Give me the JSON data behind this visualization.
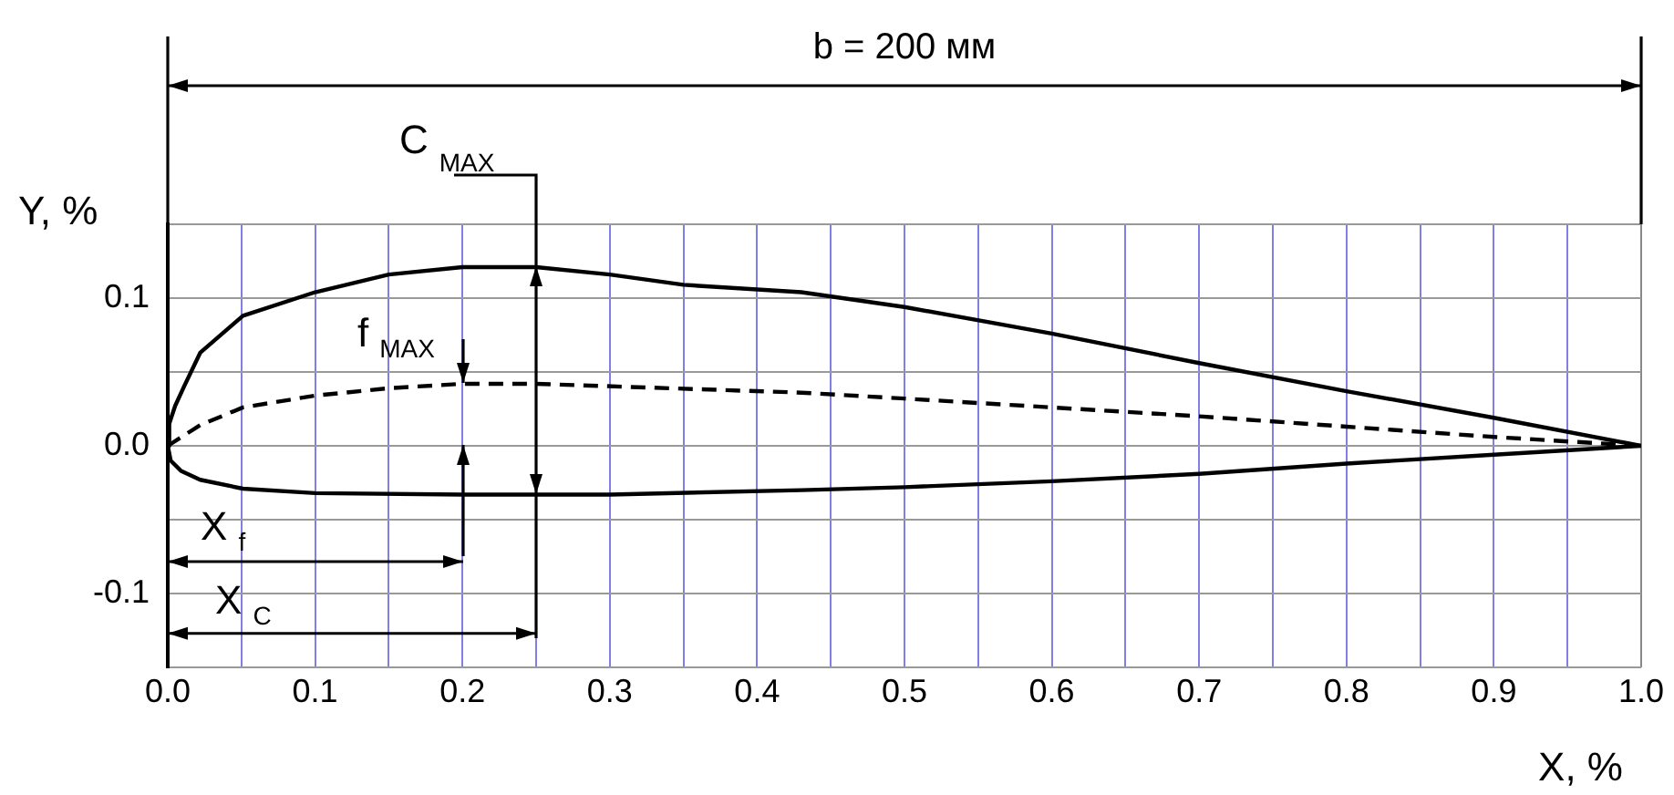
{
  "chart_data": {
    "type": "line",
    "xlabel": "X, %",
    "ylabel": "Y, %",
    "xlim": [
      0,
      1
    ],
    "ylim": [
      -0.15,
      0.15
    ],
    "xticks": [
      {
        "value": 0,
        "label": "0.0"
      },
      {
        "value": 0.05,
        "label": null
      },
      0.1,
      {
        "value": 0.15,
        "label": null
      },
      0.2,
      {
        "value": 0.25,
        "label": null
      },
      0.3,
      {
        "value": 0.35,
        "label": null
      },
      0.4,
      {
        "value": 0.45,
        "label": null
      },
      0.5,
      {
        "value": 0.55,
        "label": null
      },
      0.6,
      {
        "value": 0.65,
        "label": null
      },
      0.7,
      {
        "value": 0.75,
        "label": null
      },
      0.8,
      {
        "value": 0.85,
        "label": null
      },
      0.9,
      {
        "value": 0.95,
        "label": null
      },
      {
        "value": 1,
        "label": "1.0"
      }
    ],
    "yticks": [
      {
        "value": -0.15,
        "label": null
      },
      -0.1,
      {
        "value": -0.05,
        "label": null
      },
      {
        "value": 0,
        "label": "0.0"
      },
      {
        "value": 0.05,
        "label": null
      },
      0.1,
      {
        "value": 0.15,
        "label": null
      }
    ],
    "grid": true,
    "marker": "none",
    "legend": false,
    "series": [
      {
        "color": "#000000",
        "line_style": "solid",
        "x": [
          0,
          0.001,
          0.005,
          0.011,
          0.022,
          0.051,
          0.1,
          0.15,
          0.2,
          0.25,
          0.3,
          0.35,
          0.43,
          0.5,
          0.6,
          0.7,
          0.8,
          0.9,
          1
        ],
        "values": [
          0,
          0.015,
          0.027,
          0.04,
          0.063,
          0.088,
          0.104,
          0.116,
          0.121,
          0.121,
          0.116,
          0.109,
          0.104,
          0.094,
          0.076,
          0.056,
          0.037,
          0.019,
          0
        ]
      },
      {
        "color": "#000000",
        "line_style": "solid",
        "x": [
          0,
          0.002,
          0.009,
          0.022,
          0.051,
          0.1,
          0.2,
          0.3,
          0.43,
          0.5,
          0.6,
          0.7,
          0.8,
          0.9,
          1
        ],
        "values": [
          0,
          -0.01,
          -0.017,
          -0.023,
          -0.029,
          -0.032,
          -0.033,
          -0.033,
          -0.03,
          -0.028,
          -0.024,
          -0.019,
          -0.012,
          -0.006,
          0
        ]
      },
      {
        "color": "#000000",
        "line_style": "dashed",
        "x": [
          0,
          0.022,
          0.051,
          0.1,
          0.15,
          0.2,
          0.25,
          0.43,
          0.5,
          0.6,
          0.7,
          0.8,
          0.9,
          1
        ],
        "values": [
          0,
          0.014,
          0.026,
          0.034,
          0.039,
          0.042,
          0.042,
          0.036,
          0.032,
          0.026,
          0.02,
          0.013,
          0.006,
          0
        ]
      }
    ],
    "ref_lines": [
      {
        "axis": "x",
        "value": 0.25,
        "label": "C$_{MAX}$",
        "color": "#000000"
      }
    ],
    "annotations": [
      "b = 200 мм",
      "f$_{MAX}$",
      "X$_{f}$",
      {
        "text": "X$_{C}$",
        "x": 0.25,
        "y": -0.127
      }
    ]
  }
}
